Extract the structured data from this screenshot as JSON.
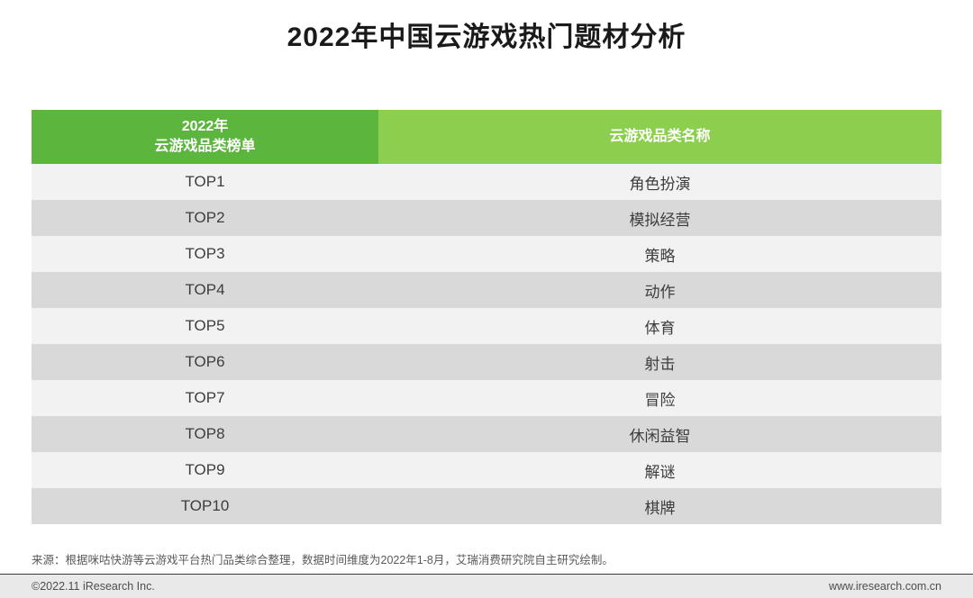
{
  "title": "2022年中国云游戏热门题材分析",
  "chart_data": {
    "type": "table",
    "title": "2022年中国云游戏热门题材分析",
    "columns": [
      "2022年云游戏品类榜单",
      "云游戏品类名称"
    ],
    "rows": [
      [
        "TOP1",
        "角色扮演"
      ],
      [
        "TOP2",
        "模拟经营"
      ],
      [
        "TOP3",
        "策略"
      ],
      [
        "TOP4",
        "动作"
      ],
      [
        "TOP5",
        "体育"
      ],
      [
        "TOP6",
        "射击"
      ],
      [
        "TOP7",
        "冒险"
      ],
      [
        "TOP8",
        "休闲益智"
      ],
      [
        "TOP9",
        "解谜"
      ],
      [
        "TOP10",
        "棋牌"
      ]
    ]
  },
  "table": {
    "header": {
      "col1_line1": "2022年",
      "col1_line2": "云游戏品类榜单",
      "col2": "云游戏品类名称"
    },
    "rows": [
      {
        "rank": "TOP1",
        "name": "角色扮演"
      },
      {
        "rank": "TOP2",
        "name": "模拟经营"
      },
      {
        "rank": "TOP3",
        "name": "策略"
      },
      {
        "rank": "TOP4",
        "name": "动作"
      },
      {
        "rank": "TOP5",
        "name": "体育"
      },
      {
        "rank": "TOP6",
        "name": "射击"
      },
      {
        "rank": "TOP7",
        "name": "冒险"
      },
      {
        "rank": "TOP8",
        "name": "休闲益智"
      },
      {
        "rank": "TOP9",
        "name": "解谜"
      },
      {
        "rank": "TOP10",
        "name": "棋牌"
      }
    ]
  },
  "source_note": "来源：根据咪咕快游等云游戏平台热门品类综合整理，数据时间维度为2022年1-8月，艾瑞消费研究院自主研究绘制。",
  "footer": {
    "copyright": "©2022.11 iResearch Inc.",
    "website": "www.iresearch.com.cn"
  },
  "colors": {
    "header_left_bg": "#5cb53c",
    "header_right_bg": "#8ccf4e",
    "row_odd_bg": "#f2f2f2",
    "row_even_bg": "#d9d9d9"
  }
}
